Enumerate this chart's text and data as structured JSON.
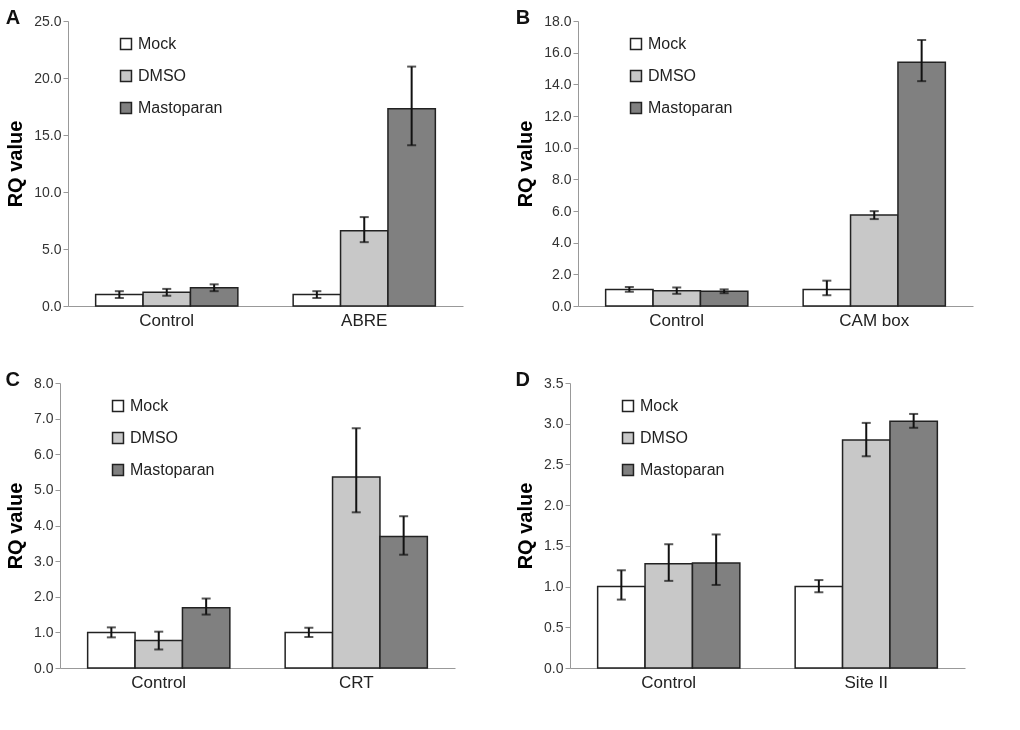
{
  "chart_data": [
    {
      "type": "bar",
      "title": "A",
      "ylabel": "RQ value",
      "categories": [
        "Control",
        "ABRE"
      ],
      "legend": "top left",
      "ylim": [
        0,
        25
      ],
      "yticks": [
        {
          "value": 0,
          "label": "0.0"
        },
        {
          "value": 5,
          "label": "5.0"
        },
        {
          "value": 10,
          "label": "10.0"
        },
        {
          "value": 15,
          "label": "15.0"
        },
        {
          "value": 20,
          "label": "20.0"
        },
        {
          "value": 25,
          "label": "25.0"
        }
      ],
      "series": [
        {
          "name": "Mock",
          "color": "#ffffff",
          "values": [
            1.0,
            1.0
          ],
          "errors": [
            0.3,
            0.3
          ]
        },
        {
          "name": "DMSO",
          "color": "#c8c8c8",
          "values": [
            1.2,
            6.6
          ],
          "errors": [
            0.3,
            [
              5.6,
              7.8
            ]
          ]
        },
        {
          "name": "Mastoparan",
          "color": "#808080",
          "values": [
            1.6,
            17.3
          ],
          "errors": [
            0.3,
            [
              14.1,
              21.0
            ]
          ]
        }
      ]
    },
    {
      "type": "bar",
      "title": "B",
      "ylabel": "RQ value",
      "categories": [
        "Control",
        "CAM box"
      ],
      "legend": "top left",
      "ylim": [
        0,
        18
      ],
      "yticks": [
        {
          "value": 0,
          "label": "0.0"
        },
        {
          "value": 2,
          "label": "2.0"
        },
        {
          "value": 4,
          "label": "4.0"
        },
        {
          "value": 6,
          "label": "6.0"
        },
        {
          "value": 8,
          "label": "8.0"
        },
        {
          "value": 10,
          "label": "10.0"
        },
        {
          "value": 12,
          "label": "12.0"
        },
        {
          "value": 14,
          "label": "14.0"
        },
        {
          "value": 16,
          "label": "16.0"
        },
        {
          "value": 18,
          "label": "18.0"
        }
      ],
      "series": [
        {
          "name": "Mock",
          "color": "#ffffff",
          "values": [
            1.05,
            1.05
          ],
          "errors": [
            0.15,
            [
              0.68,
              1.6
            ]
          ]
        },
        {
          "name": "DMSO",
          "color": "#c8c8c8",
          "values": [
            0.97,
            5.74
          ],
          "errors": [
            0.2,
            0.25
          ]
        },
        {
          "name": "Mastoparan",
          "color": "#808080",
          "values": [
            0.93,
            15.4
          ],
          "errors": [
            0.12,
            [
              14.2,
              16.8
            ]
          ]
        }
      ]
    },
    {
      "type": "bar",
      "title": "C",
      "ylabel": "RQ value",
      "categories": [
        "Control",
        "CRT"
      ],
      "legend": "top left",
      "ylim": [
        0,
        8
      ],
      "yticks": [
        {
          "value": 0,
          "label": "0.0"
        },
        {
          "value": 1,
          "label": "1.0"
        },
        {
          "value": 2,
          "label": "2.0"
        },
        {
          "value": 3,
          "label": "3.0"
        },
        {
          "value": 4,
          "label": "4.0"
        },
        {
          "value": 5,
          "label": "5.0"
        },
        {
          "value": 6,
          "label": "6.0"
        },
        {
          "value": 7,
          "label": "7.0"
        },
        {
          "value": 8,
          "label": "8.0"
        }
      ],
      "series": [
        {
          "name": "Mock",
          "color": "#ffffff",
          "values": [
            1.0,
            1.0
          ],
          "errors": [
            0.14,
            0.13
          ]
        },
        {
          "name": "DMSO",
          "color": "#c8c8c8",
          "values": [
            0.77,
            5.36
          ],
          "errors": [
            0.25,
            [
              4.37,
              6.73
            ]
          ]
        },
        {
          "name": "Mastoparan",
          "color": "#808080",
          "values": [
            1.69,
            3.69
          ],
          "errors": [
            [
              1.5,
              1.95
            ],
            [
              3.18,
              4.26
            ]
          ]
        }
      ]
    },
    {
      "type": "bar",
      "title": "D",
      "ylabel": "RQ value",
      "categories": [
        "Control",
        "Site II"
      ],
      "legend": "top left",
      "ylim": [
        0,
        3.5
      ],
      "yticks": [
        {
          "value": 0,
          "label": "0.0"
        },
        {
          "value": 0.5,
          "label": "0.5"
        },
        {
          "value": 1,
          "label": "1.0"
        },
        {
          "value": 1.5,
          "label": "1.5"
        },
        {
          "value": 2,
          "label": "2.0"
        },
        {
          "value": 2.5,
          "label": "2.5"
        },
        {
          "value": 3,
          "label": "3.0"
        },
        {
          "value": 3.5,
          "label": "3.5"
        }
      ],
      "series": [
        {
          "name": "Mock",
          "color": "#ffffff",
          "values": [
            1.0,
            1.0
          ],
          "errors": [
            [
              0.84,
              1.2
            ],
            [
              0.93,
              1.08
            ]
          ]
        },
        {
          "name": "DMSO",
          "color": "#c8c8c8",
          "values": [
            1.28,
            2.8
          ],
          "errors": [
            [
              1.07,
              1.52
            ],
            [
              2.6,
              3.01
            ]
          ]
        },
        {
          "name": "Mastoparan",
          "color": "#808080",
          "values": [
            1.29,
            3.03
          ],
          "errors": [
            [
              1.02,
              1.64
            ],
            [
              2.95,
              3.12
            ]
          ]
        }
      ]
    }
  ]
}
